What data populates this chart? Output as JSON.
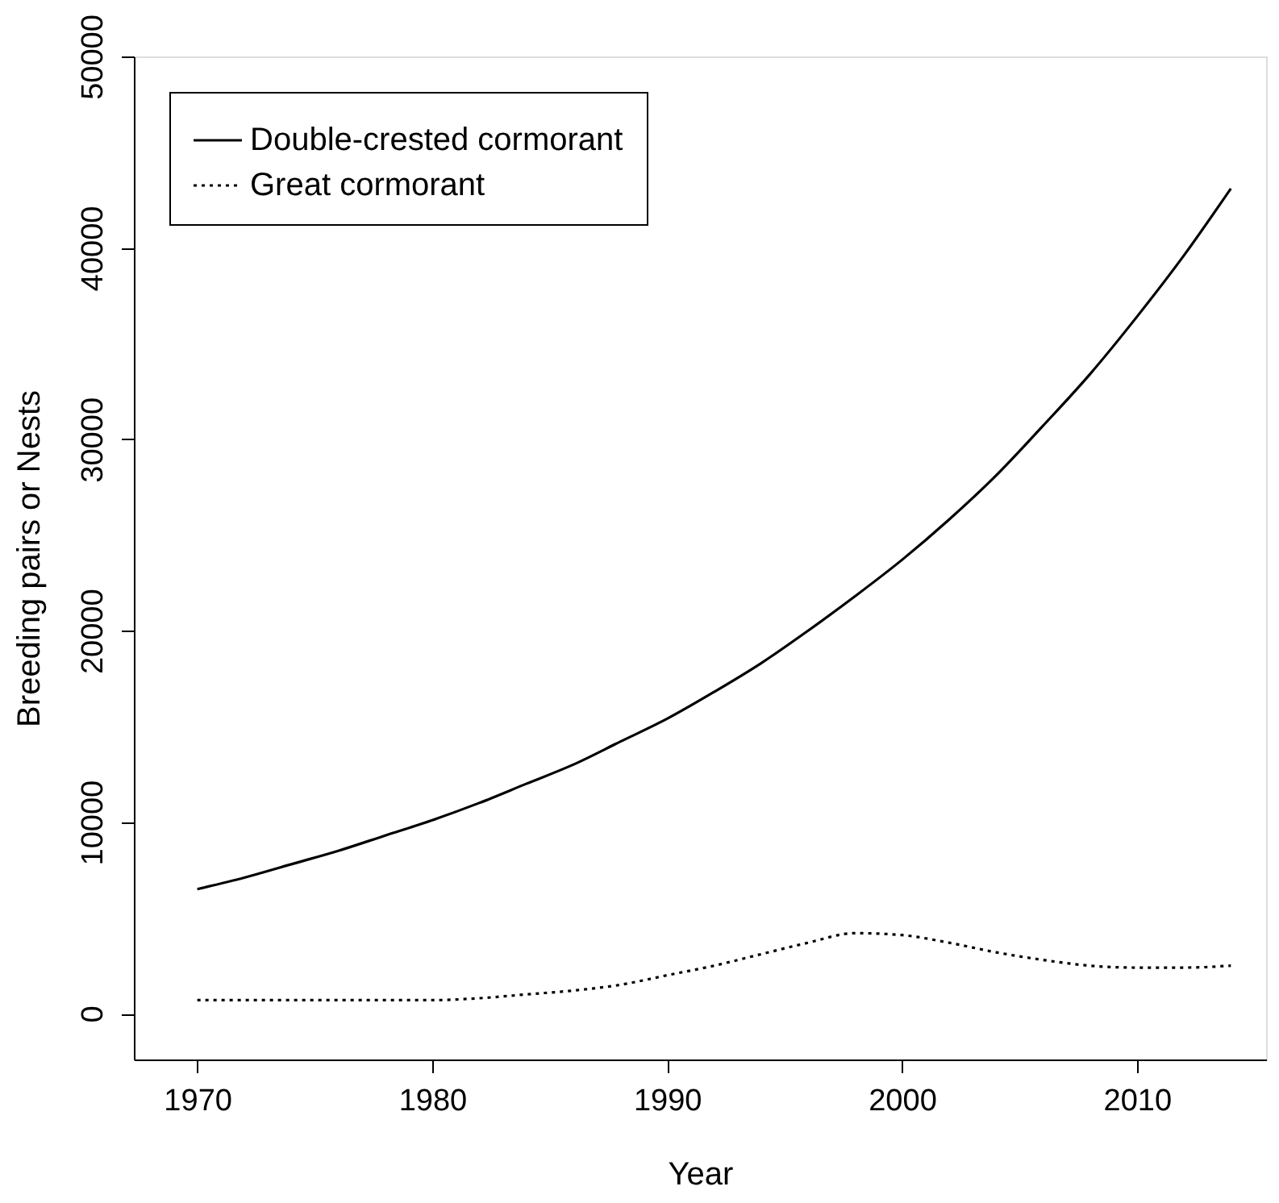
{
  "chart_data": {
    "type": "line",
    "xlabel": "Year",
    "ylabel": "Breeding pairs or Nests",
    "xlim": [
      1967.3,
      2015.5
    ],
    "ylim": [
      -2400,
      50000
    ],
    "xticks": [
      1970,
      1980,
      1990,
      2000,
      2010
    ],
    "yticks": [
      0,
      10000,
      20000,
      30000,
      40000,
      50000
    ],
    "grid": false,
    "legend": "top left",
    "marker": "none",
    "series": [
      {
        "name": "Double-crested cormorant",
        "color": "#000000",
        "line_style": "solid",
        "x": [
          1970,
          1972,
          1974,
          1976,
          1978,
          1980,
          1982,
          1984,
          1986,
          1988,
          1990,
          1992,
          1994,
          1996,
          1998,
          2000,
          2002,
          2004,
          2006,
          2008,
          2010,
          2012,
          2014
        ],
        "values": [
          6500,
          7100,
          7800,
          8500,
          9300,
          10100,
          11000,
          12000,
          13000,
          14200,
          15400,
          16800,
          18300,
          20000,
          21800,
          23700,
          25800,
          28100,
          30700,
          33400,
          36400,
          39600,
          43100
        ]
      },
      {
        "name": "Great cormorant",
        "color": "#000000",
        "line_style": "dotted",
        "x": [
          1970,
          1974,
          1978,
          1980,
          1982,
          1984,
          1986,
          1988,
          1990,
          1992,
          1994,
          1996,
          1998,
          2000,
          2002,
          2004,
          2006,
          2008,
          2010,
          2012,
          2014
        ],
        "values": [
          700,
          700,
          700,
          700,
          800,
          1000,
          1200,
          1500,
          2000,
          2500,
          3100,
          3700,
          4200,
          4100,
          3700,
          3200,
          2800,
          2500,
          2400,
          2400,
          2500
        ]
      }
    ]
  }
}
